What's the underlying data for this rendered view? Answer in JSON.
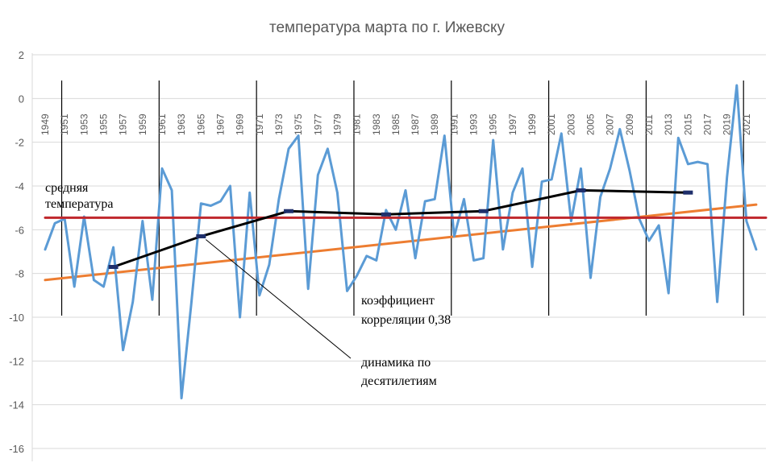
{
  "chart_data": {
    "type": "line",
    "title": "температура марта по г. Ижевску",
    "xlabel": "",
    "ylabel": "",
    "ylim": [
      -16,
      2
    ],
    "xlim": [
      1949,
      2023
    ],
    "yticks": [
      2,
      0,
      -2,
      -4,
      -6,
      -8,
      -10,
      -12,
      -14,
      -16
    ],
    "xticks": [
      1949,
      1951,
      1953,
      1955,
      1957,
      1959,
      1961,
      1963,
      1965,
      1967,
      1969,
      1971,
      1973,
      1975,
      1977,
      1979,
      1981,
      1983,
      1985,
      1987,
      1989,
      1991,
      1993,
      1995,
      1997,
      1999,
      2001,
      2003,
      2005,
      2007,
      2009,
      2011,
      2013,
      2015,
      2017,
      2019,
      2021
    ],
    "grid": true,
    "series": [
      {
        "role": "annual",
        "color": "#5b9bd5",
        "points": [
          [
            1949,
            -6.9
          ],
          [
            1950,
            -5.7
          ],
          [
            1951,
            -5.5
          ],
          [
            1952,
            -8.6
          ],
          [
            1953,
            -5.4
          ],
          [
            1954,
            -8.3
          ],
          [
            1955,
            -8.6
          ],
          [
            1956,
            -6.8
          ],
          [
            1957,
            -11.5
          ],
          [
            1958,
            -9.3
          ],
          [
            1959,
            -5.6
          ],
          [
            1960,
            -9.2
          ],
          [
            1961,
            -3.2
          ],
          [
            1962,
            -4.2
          ],
          [
            1963,
            -13.7
          ],
          [
            1964,
            -9.4
          ],
          [
            1965,
            -4.8
          ],
          [
            1966,
            -4.9
          ],
          [
            1967,
            -4.7
          ],
          [
            1968,
            -4.0
          ],
          [
            1969,
            -10.0
          ],
          [
            1970,
            -4.3
          ],
          [
            1971,
            -9.0
          ],
          [
            1972,
            -7.6
          ],
          [
            1973,
            -4.6
          ],
          [
            1974,
            -2.3
          ],
          [
            1975,
            -1.7
          ],
          [
            1976,
            -8.7
          ],
          [
            1977,
            -3.5
          ],
          [
            1978,
            -2.3
          ],
          [
            1979,
            -4.3
          ],
          [
            1980,
            -8.8
          ],
          [
            1981,
            -8.1
          ],
          [
            1982,
            -7.2
          ],
          [
            1983,
            -7.4
          ],
          [
            1984,
            -5.1
          ],
          [
            1985,
            -6.0
          ],
          [
            1986,
            -4.2
          ],
          [
            1987,
            -7.3
          ],
          [
            1988,
            -4.7
          ],
          [
            1989,
            -4.6
          ],
          [
            1990,
            -1.7
          ],
          [
            1991,
            -6.3
          ],
          [
            1992,
            -4.6
          ],
          [
            1993,
            -7.4
          ],
          [
            1994,
            -7.3
          ],
          [
            1995,
            -1.9
          ],
          [
            1996,
            -6.9
          ],
          [
            1997,
            -4.3
          ],
          [
            1998,
            -3.2
          ],
          [
            1999,
            -7.7
          ],
          [
            2000,
            -3.8
          ],
          [
            2001,
            -3.7
          ],
          [
            2002,
            -1.6
          ],
          [
            2003,
            -5.6
          ],
          [
            2004,
            -3.2
          ],
          [
            2005,
            -8.2
          ],
          [
            2006,
            -4.5
          ],
          [
            2007,
            -3.2
          ],
          [
            2008,
            -1.4
          ],
          [
            2009,
            -3.3
          ],
          [
            2010,
            -5.5
          ],
          [
            2011,
            -6.5
          ],
          [
            2012,
            -5.8
          ],
          [
            2013,
            -8.9
          ],
          [
            2014,
            -1.8
          ],
          [
            2015,
            -3.0
          ],
          [
            2016,
            -2.9
          ],
          [
            2017,
            -3.0
          ],
          [
            2018,
            -9.3
          ],
          [
            2019,
            -3.6
          ],
          [
            2020,
            0.6
          ],
          [
            2021,
            -5.6
          ],
          [
            2022,
            -6.9
          ]
        ]
      },
      {
        "role": "decadal",
        "color": "#000000",
        "points": [
          [
            1956,
            -7.7
          ],
          [
            1965,
            -6.3
          ],
          [
            1974,
            -5.15
          ],
          [
            1984,
            -5.3
          ],
          [
            1994,
            -5.15
          ],
          [
            2004,
            -4.2
          ],
          [
            2015,
            -4.3
          ]
        ]
      },
      {
        "role": "trend",
        "color": "#ed7d31",
        "points": [
          [
            1949,
            -8.3
          ],
          [
            2022,
            -4.85
          ]
        ]
      },
      {
        "role": "mean",
        "color": "#c0282d",
        "points": [
          [
            1949,
            -5.45
          ],
          [
            2023,
            -5.45
          ]
        ]
      }
    ],
    "decade_separators": [
      1950,
      1960,
      1970,
      1980,
      1990,
      2000,
      2010,
      2020
    ],
    "annotations": [
      {
        "lines": [
          "средняя",
          "температура"
        ]
      },
      {
        "lines": [
          "коэффициент",
          "корреляции 0,38"
        ]
      },
      {
        "lines": [
          "динамика по",
          "десятилетиям"
        ]
      }
    ]
  }
}
